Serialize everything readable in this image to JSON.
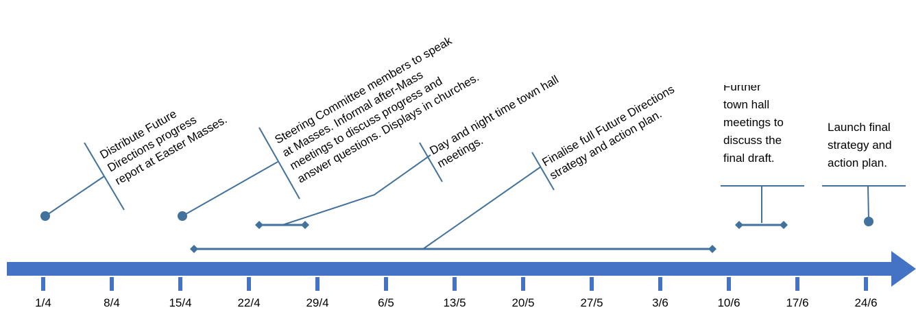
{
  "colors": {
    "arrow": "#4472C4",
    "marker": "#41719C",
    "text": "#000000",
    "background": "#FFFFFF"
  },
  "axis": {
    "ticks": [
      "1/4",
      "8/4",
      "15/4",
      "22/4",
      "29/4",
      "6/5",
      "13/5",
      "20/5",
      "27/5",
      "3/6",
      "10/6",
      "17/6",
      "24/6"
    ]
  },
  "events": [
    {
      "id": "easter",
      "lines": [
        "Distribute Future",
        "Directions progress",
        "report at Easter Masses."
      ]
    },
    {
      "id": "masses",
      "lines": [
        "Steering Committee members to speak",
        "at Masses. Informal after-Mass",
        "meetings to discuss progress and",
        "answer questions. Displays in churches."
      ]
    },
    {
      "id": "townhall",
      "lines": [
        "Day and night time town hall",
        "meetings."
      ]
    },
    {
      "id": "finalise",
      "lines": [
        "Finalise full Future Directions",
        "strategy and action plan."
      ]
    },
    {
      "id": "further",
      "lines": [
        "Further",
        "town hall",
        "meetings to",
        "discuss the",
        "final draft."
      ]
    },
    {
      "id": "launch",
      "lines": [
        "Launch final",
        "strategy and",
        "action plan."
      ]
    }
  ]
}
